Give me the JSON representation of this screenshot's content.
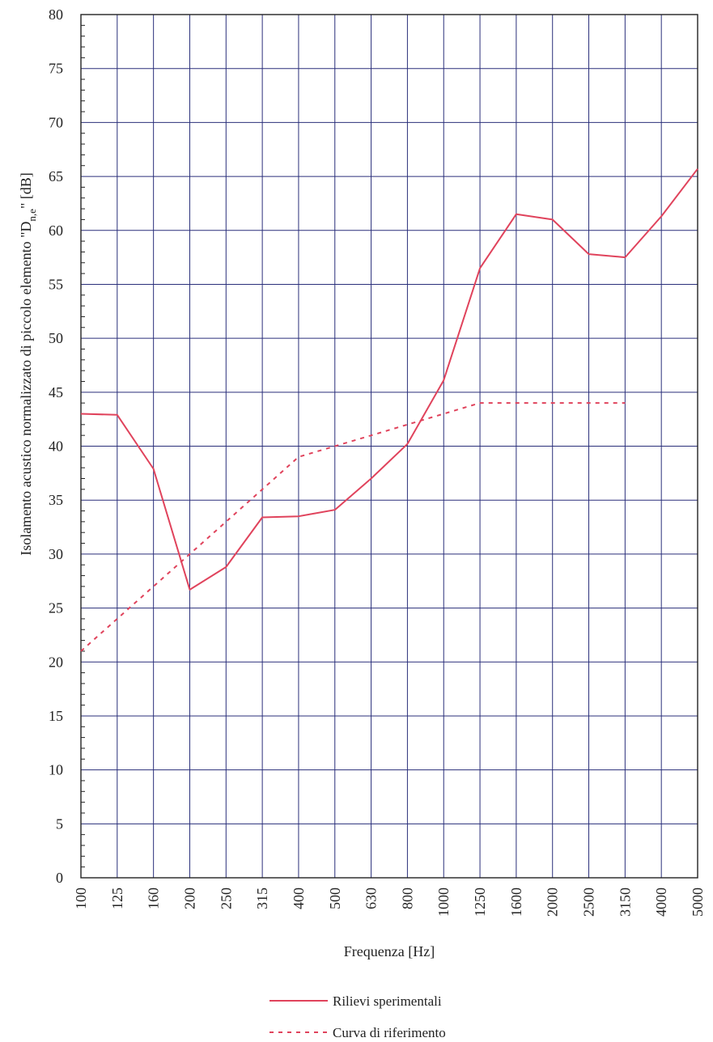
{
  "chart_data": {
    "type": "line",
    "x": [
      "100",
      "125",
      "160",
      "200",
      "250",
      "315",
      "400",
      "500",
      "630",
      "800",
      "1000",
      "1250",
      "1600",
      "2000",
      "2500",
      "3150",
      "4000",
      "5000"
    ],
    "xlabel": "Frequenza [Hz]",
    "ylabel_parts": {
      "main": "Isolamento acustico normalizzato di piccolo elemento  \"D",
      "subscript": "n,e",
      "tail": "\" [dB]"
    },
    "ylim": [
      0,
      80
    ],
    "y_ticks": [
      0,
      5,
      10,
      15,
      20,
      25,
      30,
      35,
      40,
      45,
      50,
      55,
      60,
      65,
      70,
      75,
      80
    ],
    "grid": true,
    "legend_position": "bottom-center",
    "series": [
      {
        "name": "Rilievi sperimentali",
        "style": "solid",
        "color": "#e0435c",
        "values": [
          43.0,
          42.9,
          37.9,
          26.7,
          28.8,
          33.4,
          33.5,
          34.1,
          37.0,
          40.2,
          46.1,
          56.5,
          61.5,
          61.0,
          57.8,
          57.5,
          61.3,
          65.7
        ]
      },
      {
        "name": "Curva di riferimento",
        "style": "dashed",
        "color": "#e0435c",
        "values": [
          21.0,
          24.0,
          27.0,
          30.0,
          33.0,
          36.0,
          39.0,
          40.0,
          41.0,
          42.0,
          43.0,
          44.0,
          44.0,
          44.0,
          44.0,
          44.0,
          null,
          null
        ]
      }
    ]
  }
}
